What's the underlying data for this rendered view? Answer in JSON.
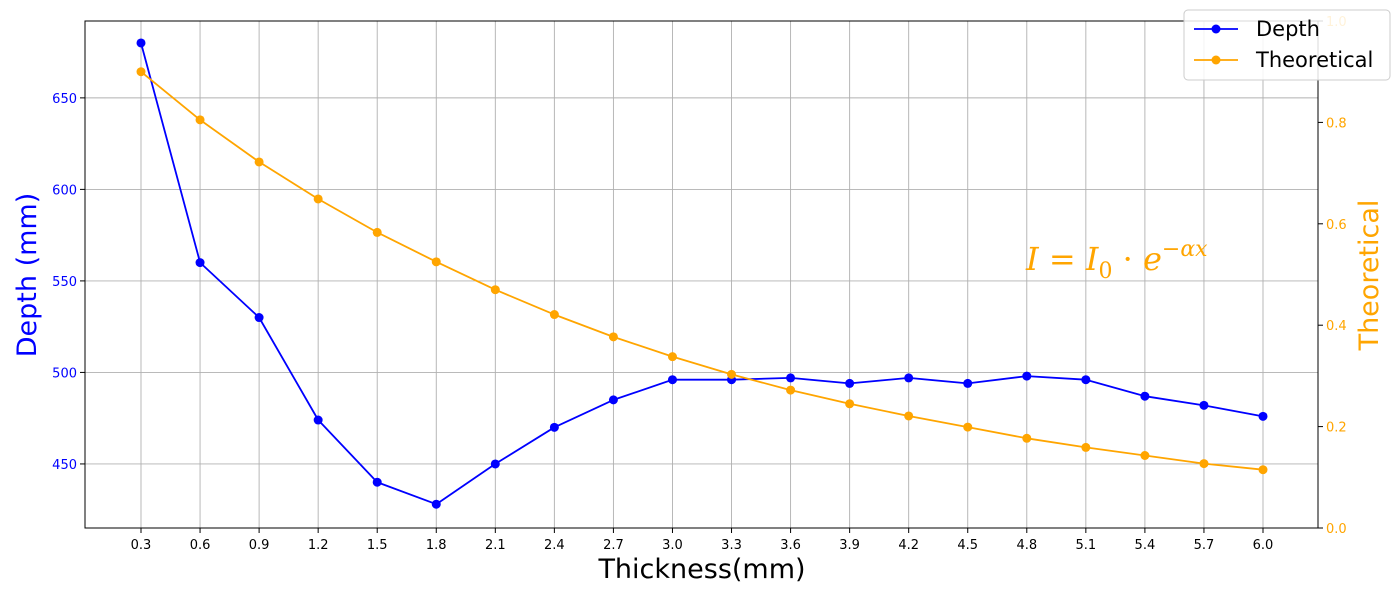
{
  "chart_data": {
    "type": "line",
    "xlabel": "Thickness(mm)",
    "ylabel_left": "Depth (mm)",
    "ylabel_right": "Theoretical",
    "annotation": "I = I0 · e^(−αx)",
    "x": [
      0.3,
      0.6,
      0.9,
      1.2,
      1.5,
      1.8,
      2.1,
      2.4,
      2.7,
      3.0,
      3.3,
      3.6,
      3.9,
      4.2,
      4.5,
      4.8,
      5.1,
      5.4,
      5.7,
      6.0
    ],
    "x_tick_labels": [
      "0.3",
      "0.6",
      "0.9",
      "1.2",
      "1.5",
      "1.8",
      "2.1",
      "2.4",
      "2.7",
      "3.0",
      "3.3",
      "3.6",
      "3.9",
      "4.2",
      "4.5",
      "4.8",
      "5.1",
      "5.4",
      "5.7",
      "6.0"
    ],
    "ylim_left": [
      415,
      692
    ],
    "yticks_left": [
      450,
      500,
      550,
      600,
      650
    ],
    "ylim_right": [
      0.0,
      1.0
    ],
    "yticks_right": [
      0.0,
      0.2,
      0.4,
      0.6,
      0.8,
      1.0
    ],
    "grid": true,
    "legend_placement": "top-right",
    "series": [
      {
        "name": "Depth",
        "axis": "left",
        "color": "#0000ff",
        "marker": "circle",
        "values": [
          680,
          560,
          530,
          474,
          440,
          428,
          450,
          470,
          485,
          496,
          496,
          497,
          494,
          497,
          494,
          498,
          496,
          487,
          482,
          476
        ]
      },
      {
        "name": "Theoretical",
        "axis": "right",
        "color": "#ffa500",
        "marker": "circle",
        "values": [
          0.9,
          0.805,
          0.722,
          0.649,
          0.583,
          0.525,
          0.47,
          0.421,
          0.377,
          0.338,
          0.303,
          0.272,
          0.245,
          0.221,
          0.199,
          0.177,
          0.159,
          0.143,
          0.127,
          0.115
        ]
      }
    ]
  }
}
